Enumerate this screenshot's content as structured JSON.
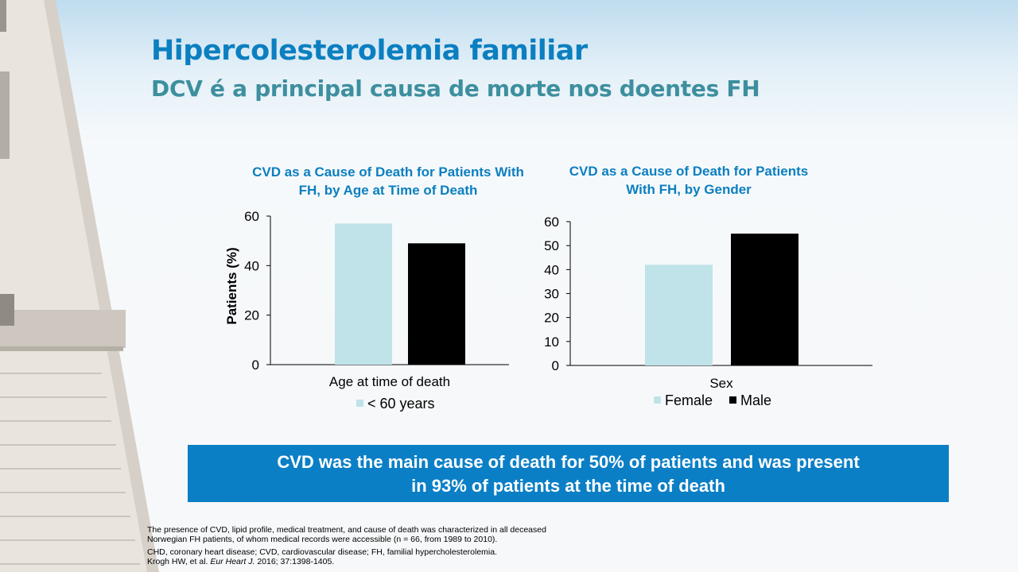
{
  "slide": {
    "title": "Hipercolesterolemia familiar",
    "subtitle": "DCV é a principal causa de morte nos doentes FH"
  },
  "chart_data": [
    {
      "type": "bar",
      "title": "CVD as a Cause of Death for Patients With FH, by Age at Time of Death",
      "xlabel": "Age at time of death",
      "ylabel": "Patients (%)",
      "ylim": [
        0,
        60
      ],
      "yticks": [
        0,
        20,
        40,
        60
      ],
      "categories": [
        "Age at time of death"
      ],
      "series": [
        {
          "name": "< 60 years",
          "values": [
            57
          ],
          "color": "#bfe3e8"
        },
        {
          "name": "",
          "values": [
            49
          ],
          "color": "#000000"
        }
      ],
      "legend": [
        "< 60 years"
      ],
      "legend_position": "bottom",
      "grid": false
    },
    {
      "type": "bar",
      "title": "CVD as a Cause of Death for Patients With FH, by Gender",
      "xlabel": "Sex",
      "ylabel": "",
      "ylim": [
        0,
        60
      ],
      "yticks": [
        0,
        10,
        20,
        30,
        40,
        50,
        60
      ],
      "categories": [
        "Sex"
      ],
      "series": [
        {
          "name": "Female",
          "values": [
            42
          ],
          "color": "#bfe3e8"
        },
        {
          "name": "Male",
          "values": [
            55
          ],
          "color": "#000000"
        }
      ],
      "legend": [
        "Female",
        "Male"
      ],
      "legend_position": "bottom",
      "grid": false
    }
  ],
  "banner": {
    "line1": "CVD was the main cause of death for 50% of patients and was present",
    "line2": "in 93% of patients at the time of death"
  },
  "footnotes": {
    "line1": "The presence of CVD, lipid profile, medical treatment, and cause of death was characterized in all deceased",
    "line2": "Norwegian FH patients, of whom medical records were accessible (n = 66, from 1989 to 2010).",
    "line3": "CHD, coronary heart disease; CVD, cardiovascular disease; FH, familial hypercholesterolemia.",
    "ref_authors": "Krogh HW, et al. ",
    "ref_journal": "Eur Heart J.",
    "ref_rest": " 2016; 37:1398-1405."
  },
  "colors": {
    "title": "#0b7fc0",
    "subtitle": "#3d8f9e",
    "banner": "#0b7fc6",
    "bar_light": "#bfe3e8",
    "bar_dark": "#000000"
  }
}
